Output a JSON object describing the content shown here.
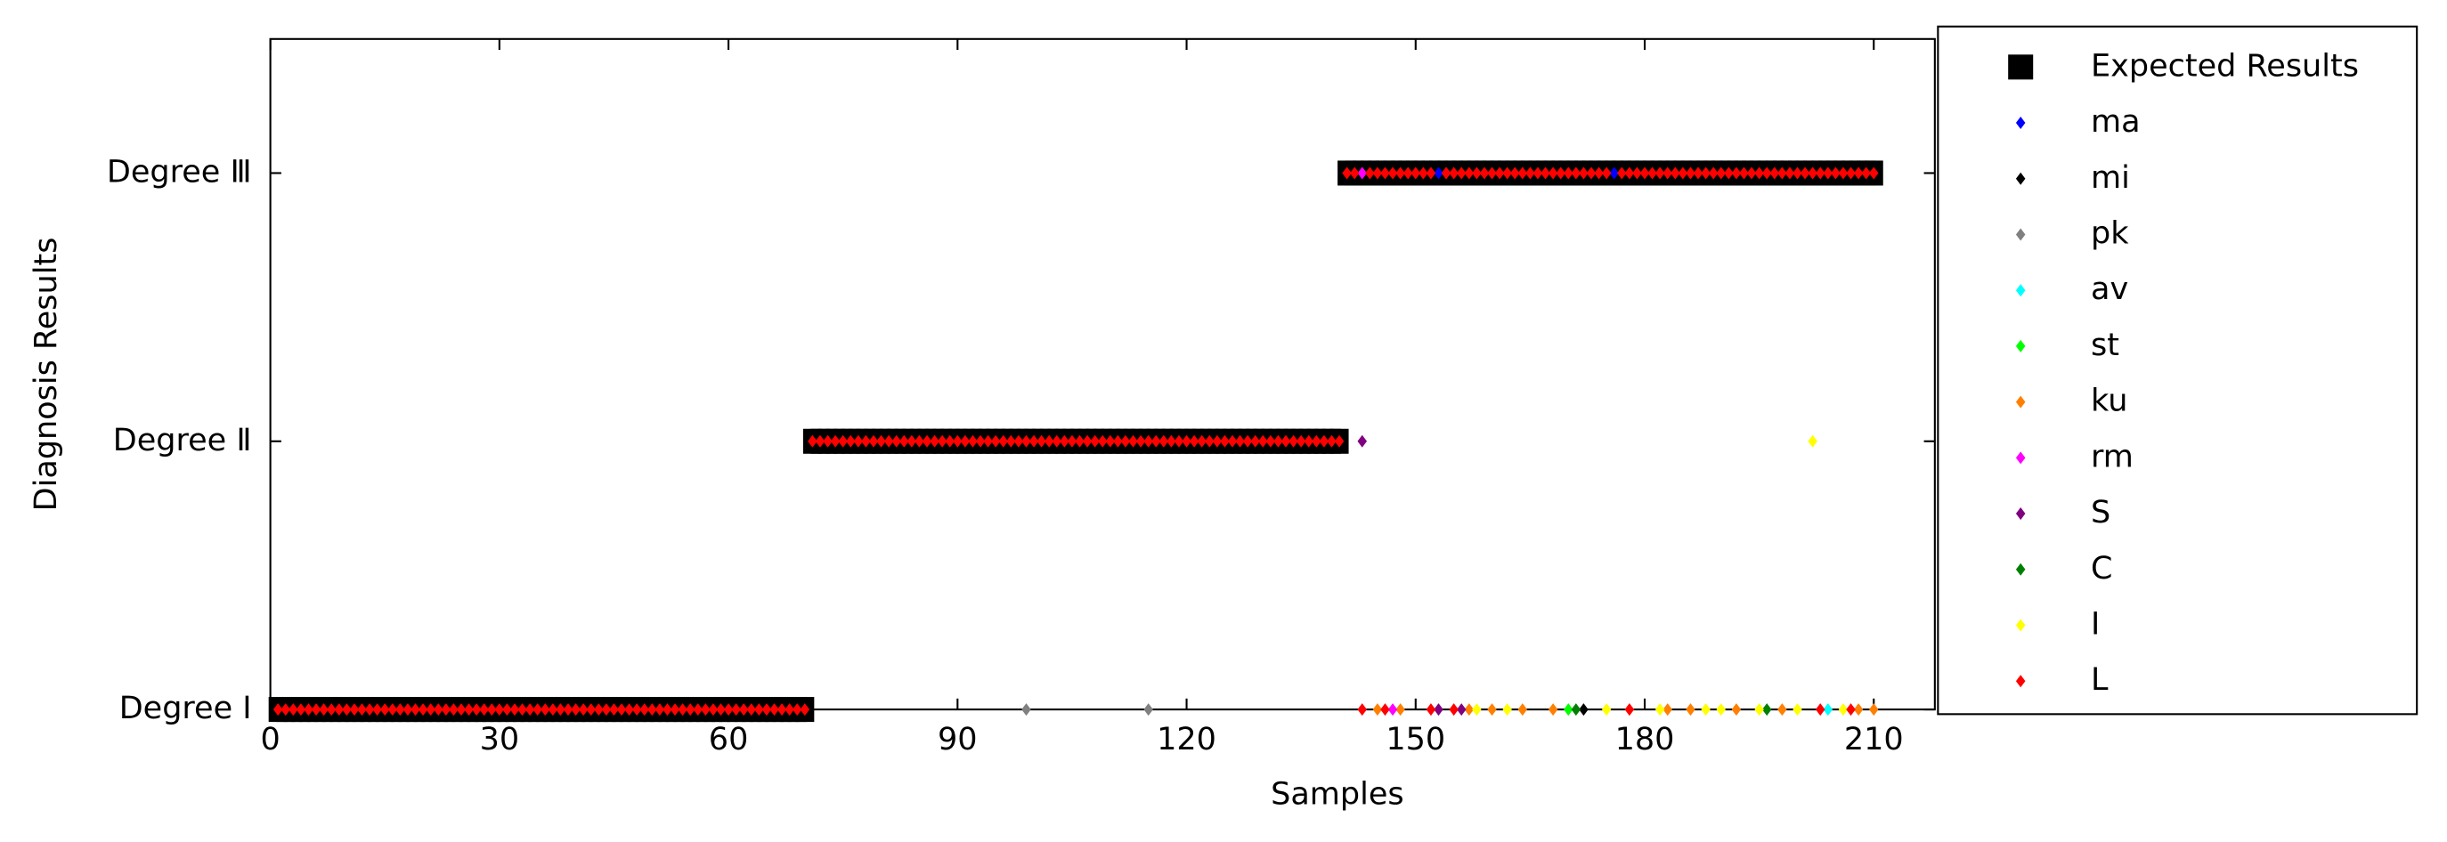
{
  "chart_data": {
    "type": "scatter",
    "xlabel": "Samples",
    "ylabel": "Diagnosis Results",
    "xlim": [
      0,
      218
    ],
    "ylim": [
      1,
      3.5
    ],
    "xticks": [
      0,
      30,
      60,
      90,
      120,
      150,
      180,
      210
    ],
    "yticks": [
      {
        "value": 1,
        "label": "Degree Ⅰ"
      },
      {
        "value": 2,
        "label": "Degree Ⅱ"
      },
      {
        "value": 3,
        "label": "Degree Ⅲ"
      }
    ],
    "legend": "outside-right",
    "series": [
      {
        "name": "Expected Results",
        "color": "#000000",
        "marker": "square",
        "x": [
          1,
          2,
          3,
          4,
          5,
          6,
          7,
          8,
          9,
          10,
          11,
          12,
          13,
          14,
          15,
          16,
          17,
          18,
          19,
          20,
          21,
          22,
          23,
          24,
          25,
          26,
          27,
          28,
          29,
          30,
          31,
          32,
          33,
          34,
          35,
          36,
          37,
          38,
          39,
          40,
          41,
          42,
          43,
          44,
          45,
          46,
          47,
          48,
          49,
          50,
          51,
          52,
          53,
          54,
          55,
          56,
          57,
          58,
          59,
          60,
          61,
          62,
          63,
          64,
          65,
          66,
          67,
          68,
          69,
          70,
          71,
          72,
          73,
          74,
          75,
          76,
          77,
          78,
          79,
          80,
          81,
          82,
          83,
          84,
          85,
          86,
          87,
          88,
          89,
          90,
          91,
          92,
          93,
          94,
          95,
          96,
          97,
          98,
          99,
          100,
          101,
          102,
          103,
          104,
          105,
          106,
          107,
          108,
          109,
          110,
          111,
          112,
          113,
          114,
          115,
          116,
          117,
          118,
          119,
          120,
          121,
          122,
          123,
          124,
          125,
          126,
          127,
          128,
          129,
          130,
          131,
          132,
          133,
          134,
          135,
          136,
          137,
          138,
          139,
          140,
          141,
          142,
          143,
          144,
          145,
          146,
          147,
          148,
          149,
          150,
          151,
          152,
          153,
          154,
          155,
          156,
          157,
          158,
          159,
          160,
          161,
          162,
          163,
          164,
          165,
          166,
          167,
          168,
          169,
          170,
          171,
          172,
          173,
          174,
          175,
          176,
          177,
          178,
          179,
          180,
          181,
          182,
          183,
          184,
          185,
          186,
          187,
          188,
          189,
          190,
          191,
          192,
          193,
          194,
          195,
          196,
          197,
          198,
          199,
          200,
          201,
          202,
          203,
          204,
          205,
          206,
          207,
          208,
          209,
          210
        ],
        "values": [
          1,
          1,
          1,
          1,
          1,
          1,
          1,
          1,
          1,
          1,
          1,
          1,
          1,
          1,
          1,
          1,
          1,
          1,
          1,
          1,
          1,
          1,
          1,
          1,
          1,
          1,
          1,
          1,
          1,
          1,
          1,
          1,
          1,
          1,
          1,
          1,
          1,
          1,
          1,
          1,
          1,
          1,
          1,
          1,
          1,
          1,
          1,
          1,
          1,
          1,
          1,
          1,
          1,
          1,
          1,
          1,
          1,
          1,
          1,
          1,
          1,
          1,
          1,
          1,
          1,
          1,
          1,
          1,
          1,
          1,
          2,
          2,
          2,
          2,
          2,
          2,
          2,
          2,
          2,
          2,
          2,
          2,
          2,
          2,
          2,
          2,
          2,
          2,
          2,
          2,
          2,
          2,
          2,
          2,
          2,
          2,
          2,
          2,
          2,
          2,
          2,
          2,
          2,
          2,
          2,
          2,
          2,
          2,
          2,
          2,
          2,
          2,
          2,
          2,
          2,
          2,
          2,
          2,
          2,
          2,
          2,
          2,
          2,
          2,
          2,
          2,
          2,
          2,
          2,
          2,
          2,
          2,
          2,
          2,
          2,
          2,
          2,
          2,
          2,
          2,
          3,
          3,
          3,
          3,
          3,
          3,
          3,
          3,
          3,
          3,
          3,
          3,
          3,
          3,
          3,
          3,
          3,
          3,
          3,
          3,
          3,
          3,
          3,
          3,
          3,
          3,
          3,
          3,
          3,
          3,
          3,
          3,
          3,
          3,
          3,
          3,
          3,
          3,
          3,
          3,
          3,
          3,
          3,
          3,
          3,
          3,
          3,
          3,
          3,
          3,
          3,
          3,
          3,
          3,
          3,
          3,
          3,
          3,
          3,
          3,
          3,
          3,
          3,
          3,
          3,
          3,
          3,
          3,
          3,
          3
        ]
      },
      {
        "name": "ma",
        "color": "#0000ff",
        "marker": "diamond",
        "x": [
          153,
          176
        ],
        "values": [
          3,
          3
        ]
      },
      {
        "name": "mi",
        "color": "#000000",
        "marker": "diamond",
        "x": [
          172
        ],
        "values": [
          1
        ]
      },
      {
        "name": "pk",
        "color": "#808080",
        "marker": "diamond",
        "x": [
          99,
          115
        ],
        "values": [
          1,
          1
        ]
      },
      {
        "name": "av",
        "color": "#00ffff",
        "marker": "diamond",
        "x": [
          204
        ],
        "values": [
          1
        ]
      },
      {
        "name": "st",
        "color": "#00ff00",
        "marker": "diamond",
        "x": [
          170
        ],
        "values": [
          1
        ]
      },
      {
        "name": "ku",
        "color": "#ff8000",
        "marker": "diamond",
        "x": [
          145,
          148,
          157,
          160,
          164,
          168,
          178,
          183,
          186,
          192,
          198,
          208,
          210
        ],
        "values": [
          1,
          1,
          1,
          1,
          1,
          1,
          1,
          1,
          1,
          1,
          1,
          1,
          1
        ]
      },
      {
        "name": "rm",
        "color": "#ff00ff",
        "marker": "diamond",
        "x": [
          143,
          147
        ],
        "values": [
          3,
          1
        ]
      },
      {
        "name": "S",
        "color": "#800080",
        "marker": "diamond",
        "x": [
          143,
          153,
          156,
          154
        ],
        "values": [
          2,
          1,
          1,
          3
        ]
      },
      {
        "name": "C",
        "color": "#008000",
        "marker": "diamond",
        "x": [
          171,
          196
        ],
        "values": [
          1,
          1
        ]
      },
      {
        "name": "I",
        "color": "#ffff00",
        "marker": "diamond",
        "x": [
          202,
          158,
          162,
          175,
          182,
          188,
          190,
          195,
          200,
          206
        ],
        "values": [
          2,
          1,
          1,
          1,
          1,
          1,
          1,
          1,
          1,
          1
        ]
      },
      {
        "name": "L",
        "color": "#ff0000",
        "marker": "diamond",
        "x": [
          1,
          2,
          3,
          4,
          5,
          6,
          7,
          8,
          9,
          10,
          11,
          12,
          13,
          14,
          15,
          16,
          17,
          18,
          19,
          20,
          21,
          22,
          23,
          24,
          25,
          26,
          27,
          28,
          29,
          30,
          31,
          32,
          33,
          34,
          35,
          36,
          37,
          38,
          39,
          40,
          41,
          42,
          43,
          44,
          45,
          46,
          47,
          48,
          49,
          50,
          51,
          52,
          53,
          54,
          55,
          56,
          57,
          58,
          59,
          60,
          61,
          62,
          63,
          64,
          65,
          66,
          67,
          68,
          69,
          70,
          71,
          72,
          73,
          74,
          75,
          76,
          77,
          78,
          79,
          80,
          81,
          82,
          83,
          84,
          85,
          86,
          87,
          88,
          89,
          90,
          91,
          92,
          93,
          94,
          95,
          96,
          97,
          98,
          99,
          100,
          101,
          102,
          103,
          104,
          105,
          106,
          107,
          108,
          109,
          110,
          111,
          112,
          113,
          114,
          115,
          116,
          117,
          118,
          119,
          120,
          121,
          122,
          123,
          124,
          125,
          126,
          127,
          128,
          129,
          130,
          131,
          132,
          133,
          134,
          135,
          136,
          137,
          138,
          139,
          140,
          141,
          142,
          144,
          145,
          146,
          147,
          148,
          149,
          150,
          151,
          152,
          154,
          155,
          156,
          157,
          158,
          159,
          160,
          161,
          162,
          163,
          164,
          165,
          166,
          167,
          168,
          169,
          170,
          171,
          172,
          173,
          174,
          175,
          177,
          178,
          179,
          180,
          181,
          182,
          183,
          184,
          185,
          186,
          187,
          188,
          189,
          190,
          191,
          192,
          193,
          194,
          195,
          196,
          197,
          198,
          199,
          200,
          201,
          202,
          203,
          204,
          205,
          206,
          207,
          208,
          209,
          210,
          143,
          146,
          152,
          155,
          178,
          203,
          207
        ],
        "values": [
          1,
          1,
          1,
          1,
          1,
          1,
          1,
          1,
          1,
          1,
          1,
          1,
          1,
          1,
          1,
          1,
          1,
          1,
          1,
          1,
          1,
          1,
          1,
          1,
          1,
          1,
          1,
          1,
          1,
          1,
          1,
          1,
          1,
          1,
          1,
          1,
          1,
          1,
          1,
          1,
          1,
          1,
          1,
          1,
          1,
          1,
          1,
          1,
          1,
          1,
          1,
          1,
          1,
          1,
          1,
          1,
          1,
          1,
          1,
          1,
          1,
          1,
          1,
          1,
          1,
          1,
          1,
          1,
          1,
          1,
          2,
          2,
          2,
          2,
          2,
          2,
          2,
          2,
          2,
          2,
          2,
          2,
          2,
          2,
          2,
          2,
          2,
          2,
          2,
          2,
          2,
          2,
          2,
          2,
          2,
          2,
          2,
          2,
          2,
          2,
          2,
          2,
          2,
          2,
          2,
          2,
          2,
          2,
          2,
          2,
          2,
          2,
          2,
          2,
          2,
          2,
          2,
          2,
          2,
          2,
          2,
          2,
          2,
          2,
          2,
          2,
          2,
          2,
          2,
          2,
          2,
          2,
          2,
          2,
          2,
          2,
          2,
          2,
          2,
          2,
          3,
          3,
          3,
          3,
          3,
          3,
          3,
          3,
          3,
          3,
          3,
          3,
          3,
          3,
          3,
          3,
          3,
          3,
          3,
          3,
          3,
          3,
          3,
          3,
          3,
          3,
          3,
          3,
          3,
          3,
          3,
          3,
          3,
          3,
          3,
          3,
          3,
          3,
          3,
          3,
          3,
          3,
          3,
          3,
          3,
          3,
          3,
          3,
          3,
          3,
          3,
          3,
          3,
          3,
          3,
          3,
          3,
          3,
          3,
          3,
          3,
          3,
          3,
          3,
          3,
          3,
          3,
          1,
          1,
          1,
          1,
          1,
          1,
          1
        ]
      }
    ]
  }
}
